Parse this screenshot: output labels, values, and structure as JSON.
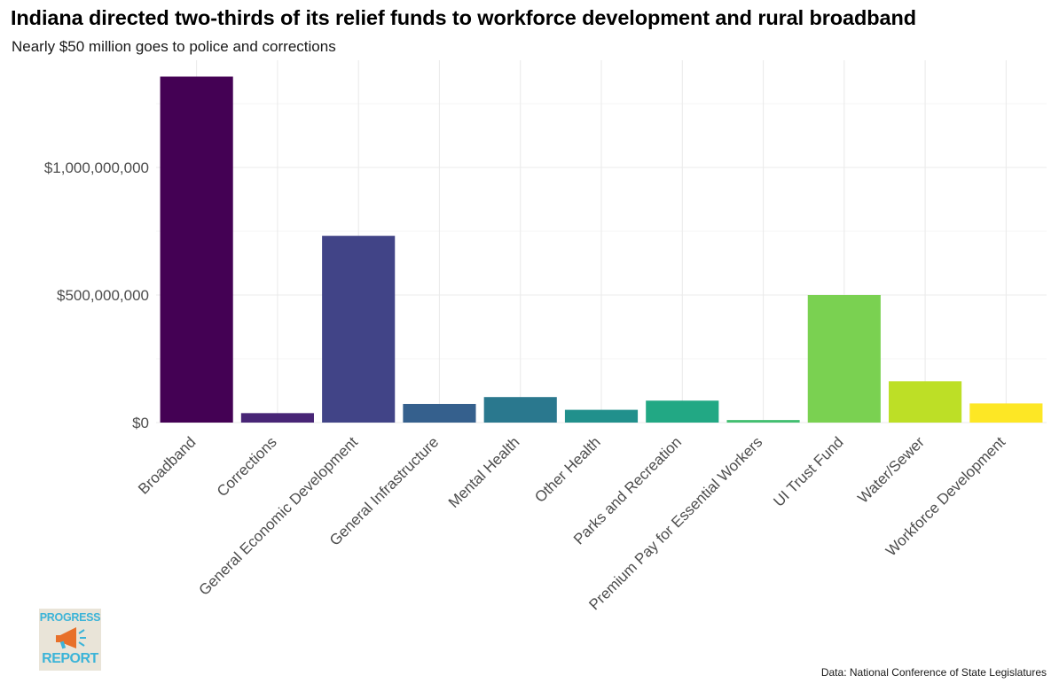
{
  "title": "Indiana directed two-thirds of its relief funds to workforce development and rural broadband",
  "subtitle": "Nearly $50 million goes to police and corrections",
  "caption": "Data: National Conference of State Legislatures",
  "logo": {
    "line1": "PROGRESS",
    "line2": "REPORT",
    "icon": "megaphone-icon",
    "color": "#3cb4d8",
    "accent": "#e8702a"
  },
  "colors": {
    "background": "#ffffff",
    "grid": "#ebebeb",
    "tick_text": "#4d4d4d",
    "bars": [
      "#440154",
      "#482576",
      "#414487",
      "#35608d",
      "#2a788e",
      "#21908c",
      "#22a884",
      "#43bf71",
      "#7ad151",
      "#bddf26",
      "#fde725"
    ]
  },
  "chart_data": {
    "type": "bar",
    "title": "Indiana directed two-thirds of its relief funds to workforce development and rural broadband",
    "subtitle": "Nearly $50 million goes to police and corrections",
    "xlabel": "",
    "ylabel": "",
    "categories": [
      "Broadband",
      "Corrections",
      "General Economic Development",
      "General Infrastructure",
      "Mental Health",
      "Other Health",
      "Parks and Recreation",
      "Premium Pay for Essential Workers",
      "UI Trust Fund",
      "Water/Sewer",
      "Workforce Development"
    ],
    "values": [
      1356000000,
      37000000,
      732000000,
      73000000,
      100000000,
      50000000,
      86000000,
      10000000,
      500000000,
      162000000,
      75000000
    ],
    "ylim": [
      0,
      1356000000
    ],
    "yticks": [
      0,
      500000000,
      1000000000
    ],
    "ytick_labels": [
      "$0",
      "$500,000,000",
      "$1,000,000,000"
    ],
    "grid": true,
    "legend": "none"
  }
}
